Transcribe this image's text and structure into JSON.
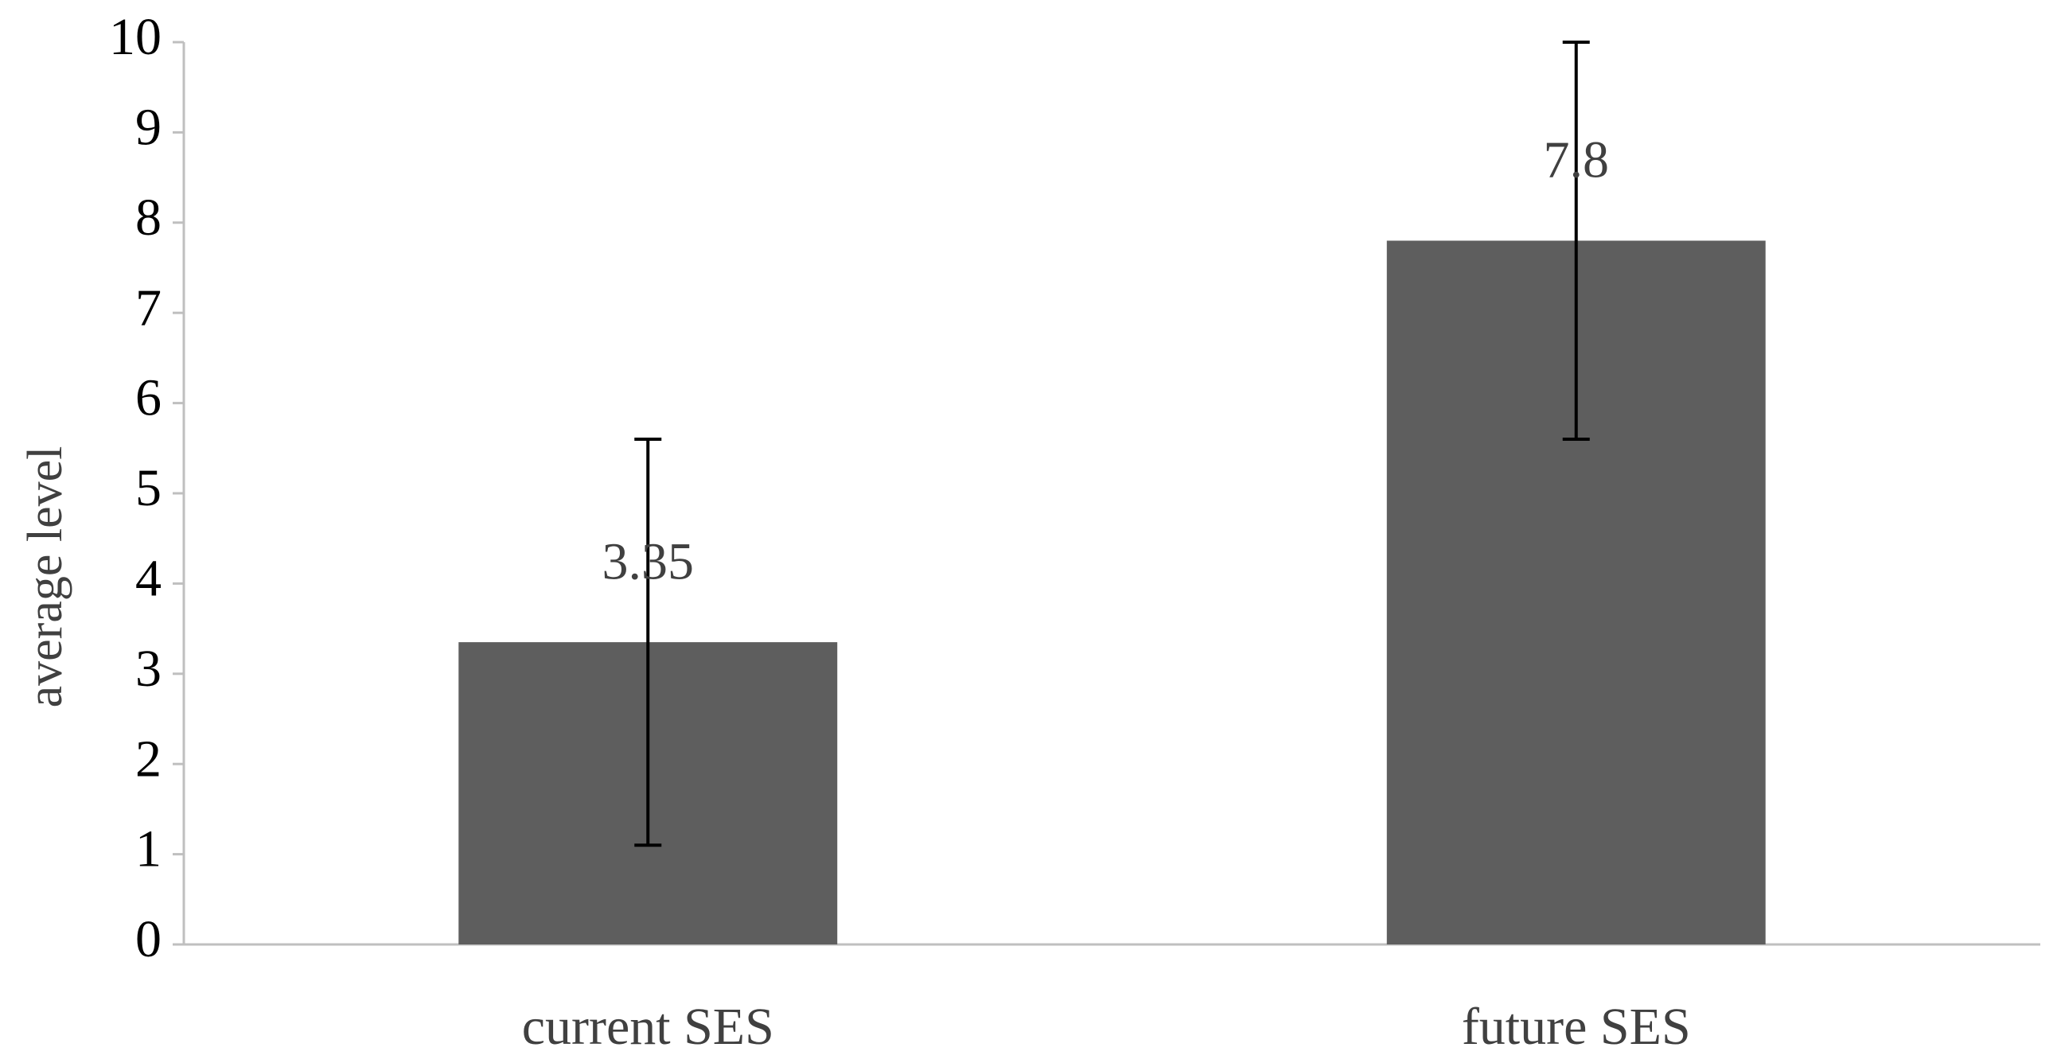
{
  "chart_data": {
    "type": "bar",
    "y_label": "average level",
    "categories": [
      "current SES",
      "future SES"
    ],
    "values": [
      3.35,
      7.8
    ],
    "errors": [
      2.25,
      2.2
    ],
    "color": "#5e5e5e",
    "ylim": [
      0,
      10
    ],
    "yticks": [
      0,
      1,
      2,
      3,
      4,
      5,
      6,
      7,
      8,
      9,
      10
    ],
    "grid": false
  }
}
